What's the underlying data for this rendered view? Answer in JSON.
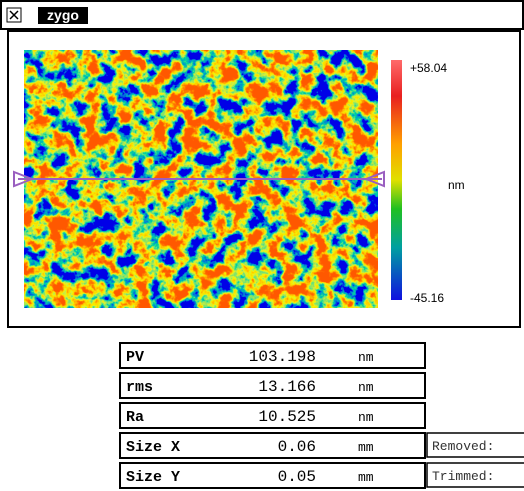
{
  "window": {
    "title": "zygo"
  },
  "map": {
    "max_label": "+58.04",
    "unit": "nm",
    "min_label": "-45.16"
  },
  "table": {
    "rows": [
      [
        "PV",
        "103.198",
        "nm"
      ],
      [
        "rms",
        "13.166",
        "nm"
      ],
      [
        "Ra",
        "10.525",
        "nm"
      ],
      [
        "Size X",
        "0.06",
        "mm"
      ],
      [
        "Size Y",
        "0.05",
        "mm"
      ]
    ],
    "side": [
      "Removed:",
      "Trimmed:"
    ]
  }
}
